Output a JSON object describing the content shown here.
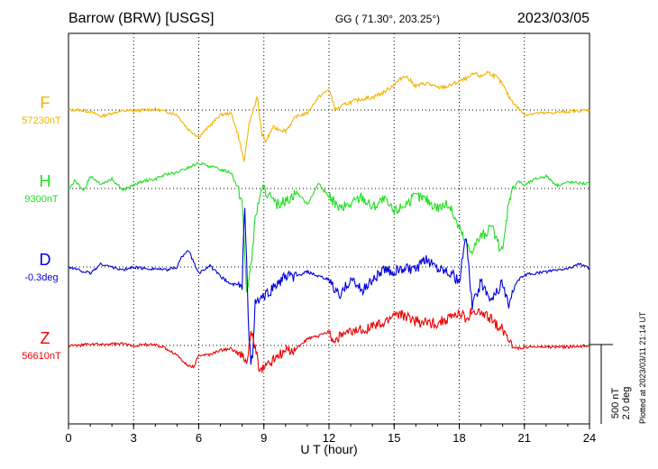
{
  "header": {
    "station": "Barrow (BRW)  [USGS]",
    "coords": "GG ( 71.30°, 203.25°)",
    "date": "2023/03/05"
  },
  "footer": {
    "plotted": "Plotted at 2023/03/11 21:14 UT"
  },
  "chart_data": {
    "type": "line",
    "xlabel": "U T (hour)",
    "xlim": [
      0,
      24
    ],
    "xticks": [
      "0",
      "3",
      "6",
      "9",
      "12",
      "15",
      "18",
      "21",
      "24"
    ],
    "grid": true,
    "scale": {
      "nT": "500 nT",
      "deg": "2.0 deg"
    },
    "series": [
      {
        "name": "F",
        "baseline": "57230nT",
        "color": "#f0b400",
        "points": [
          [
            0,
            0
          ],
          [
            0.5,
            0
          ],
          [
            1,
            -10
          ],
          [
            1.5,
            -40
          ],
          [
            2,
            -20
          ],
          [
            2.5,
            -5
          ],
          [
            3,
            -5
          ],
          [
            3.5,
            0
          ],
          [
            4,
            5
          ],
          [
            4.5,
            -10
          ],
          [
            5,
            -30
          ],
          [
            5.5,
            -120
          ],
          [
            6,
            -170
          ],
          [
            6.5,
            -100
          ],
          [
            7,
            -30
          ],
          [
            7.5,
            -20
          ],
          [
            7.8,
            -150
          ],
          [
            8.1,
            -330
          ],
          [
            8.3,
            -100
          ],
          [
            8.5,
            0
          ],
          [
            8.7,
            80
          ],
          [
            8.9,
            -150
          ],
          [
            9.1,
            -200
          ],
          [
            9.4,
            -110
          ],
          [
            10,
            -130
          ],
          [
            10.5,
            -40
          ],
          [
            11,
            -20
          ],
          [
            11.5,
            80
          ],
          [
            12,
            130
          ],
          [
            12.3,
            0
          ],
          [
            12.8,
            40
          ],
          [
            13.5,
            70
          ],
          [
            14,
            80
          ],
          [
            14.5,
            110
          ],
          [
            15,
            160
          ],
          [
            15.5,
            220
          ],
          [
            16,
            150
          ],
          [
            16.5,
            170
          ],
          [
            17,
            140
          ],
          [
            17.5,
            150
          ],
          [
            18,
            180
          ],
          [
            18.4,
            200
          ],
          [
            18.7,
            230
          ],
          [
            19,
            210
          ],
          [
            19.3,
            240
          ],
          [
            19.7,
            210
          ],
          [
            20,
            160
          ],
          [
            20.3,
            80
          ],
          [
            20.6,
            30
          ],
          [
            21,
            -30
          ],
          [
            21.5,
            -20
          ],
          [
            22,
            -20
          ],
          [
            23,
            -10
          ],
          [
            24,
            0
          ]
        ]
      },
      {
        "name": "H",
        "baseline": "9300nT",
        "color": "#22dd22",
        "points": [
          [
            0,
            0
          ],
          [
            0.3,
            50
          ],
          [
            0.7,
            -20
          ],
          [
            1,
            80
          ],
          [
            1.5,
            30
          ],
          [
            2,
            60
          ],
          [
            2.5,
            -10
          ],
          [
            3,
            20
          ],
          [
            3.5,
            50
          ],
          [
            4,
            60
          ],
          [
            4.5,
            90
          ],
          [
            5,
            100
          ],
          [
            5.5,
            130
          ],
          [
            6,
            160
          ],
          [
            6.5,
            140
          ],
          [
            7,
            120
          ],
          [
            7.5,
            100
          ],
          [
            7.8,
            0
          ],
          [
            8,
            -80
          ],
          [
            8.2,
            -650
          ],
          [
            8.4,
            -500
          ],
          [
            8.6,
            -200
          ],
          [
            8.8,
            -50
          ],
          [
            9,
            0
          ],
          [
            9.5,
            -100
          ],
          [
            10,
            -80
          ],
          [
            10.5,
            -20
          ],
          [
            11,
            -100
          ],
          [
            11.5,
            30
          ],
          [
            12,
            -50
          ],
          [
            12.5,
            -130
          ],
          [
            13,
            -100
          ],
          [
            13.5,
            -50
          ],
          [
            14,
            -120
          ],
          [
            14.5,
            -70
          ],
          [
            15,
            -150
          ],
          [
            15.5,
            -100
          ],
          [
            16,
            -50
          ],
          [
            16.5,
            -70
          ],
          [
            17,
            -120
          ],
          [
            17.5,
            -100
          ],
          [
            18,
            -250
          ],
          [
            18.5,
            -400
          ],
          [
            19,
            -300
          ],
          [
            19.5,
            -250
          ],
          [
            19.8,
            -350
          ],
          [
            20,
            -400
          ],
          [
            20.3,
            -50
          ],
          [
            20.7,
            50
          ],
          [
            21,
            20
          ],
          [
            21.5,
            60
          ],
          [
            22,
            80
          ],
          [
            22.5,
            20
          ],
          [
            23,
            40
          ],
          [
            24,
            30
          ]
        ]
      },
      {
        "name": "D",
        "baseline": "-0.3deg",
        "color": "#0000dd",
        "points": [
          [
            0,
            0
          ],
          [
            0.5,
            -20
          ],
          [
            1,
            -40
          ],
          [
            1.5,
            20
          ],
          [
            2,
            0
          ],
          [
            2.5,
            -20
          ],
          [
            3,
            0
          ],
          [
            3.5,
            -10
          ],
          [
            4,
            -10
          ],
          [
            4.5,
            -20
          ],
          [
            5,
            0
          ],
          [
            5.2,
            60
          ],
          [
            5.5,
            110
          ],
          [
            5.8,
            20
          ],
          [
            6,
            -40
          ],
          [
            6.5,
            10
          ],
          [
            7,
            -60
          ],
          [
            7.5,
            -110
          ],
          [
            7.8,
            -110
          ],
          [
            8,
            -140
          ],
          [
            8.1,
            400
          ],
          [
            8.2,
            100
          ],
          [
            8.3,
            -400
          ],
          [
            8.4,
            -600
          ],
          [
            8.5,
            -550
          ],
          [
            8.6,
            -220
          ],
          [
            9,
            -190
          ],
          [
            9.5,
            -120
          ],
          [
            10,
            -60
          ],
          [
            10.5,
            -60
          ],
          [
            11,
            -30
          ],
          [
            11.5,
            -60
          ],
          [
            12,
            -80
          ],
          [
            12.5,
            -190
          ],
          [
            13,
            -70
          ],
          [
            13.5,
            -150
          ],
          [
            14,
            -80
          ],
          [
            14.5,
            -20
          ],
          [
            15,
            -30
          ],
          [
            15.5,
            -10
          ],
          [
            16,
            -20
          ],
          [
            16.5,
            50
          ],
          [
            17,
            0
          ],
          [
            17.5,
            -20
          ],
          [
            18,
            -100
          ],
          [
            18.3,
            200
          ],
          [
            18.6,
            -250
          ],
          [
            19,
            -100
          ],
          [
            19.5,
            -200
          ],
          [
            20,
            -100
          ],
          [
            20.3,
            -250
          ],
          [
            20.6,
            -100
          ],
          [
            21,
            -50
          ],
          [
            21.5,
            -40
          ],
          [
            22,
            -30
          ],
          [
            22.5,
            -20
          ],
          [
            23,
            -10
          ],
          [
            23.5,
            20
          ],
          [
            24,
            -10
          ]
        ]
      },
      {
        "name": "Z",
        "baseline": "56610nT",
        "color": "#ee0000",
        "points": [
          [
            0,
            0
          ],
          [
            0.5,
            0
          ],
          [
            1,
            10
          ],
          [
            1.5,
            5
          ],
          [
            2,
            10
          ],
          [
            2.5,
            10
          ],
          [
            3,
            0
          ],
          [
            3.5,
            5
          ],
          [
            4,
            5
          ],
          [
            4.5,
            -20
          ],
          [
            5,
            -60
          ],
          [
            5.5,
            -130
          ],
          [
            5.8,
            -130
          ],
          [
            6,
            -60
          ],
          [
            6.5,
            -60
          ],
          [
            7,
            -30
          ],
          [
            7.5,
            -20
          ],
          [
            8,
            -70
          ],
          [
            8.2,
            -120
          ],
          [
            8.4,
            80
          ],
          [
            8.6,
            0
          ],
          [
            8.8,
            -160
          ],
          [
            9,
            -140
          ],
          [
            9.5,
            -80
          ],
          [
            10,
            -40
          ],
          [
            10.5,
            -20
          ],
          [
            11,
            40
          ],
          [
            11.5,
            60
          ],
          [
            12,
            90
          ],
          [
            12.2,
            20
          ],
          [
            12.5,
            60
          ],
          [
            13,
            80
          ],
          [
            13.5,
            100
          ],
          [
            14,
            120
          ],
          [
            14.5,
            130
          ],
          [
            15,
            200
          ],
          [
            15.5,
            190
          ],
          [
            16,
            150
          ],
          [
            16.5,
            140
          ],
          [
            17,
            140
          ],
          [
            17.5,
            170
          ],
          [
            18,
            200
          ],
          [
            18.3,
            170
          ],
          [
            18.6,
            220
          ],
          [
            19,
            200
          ],
          [
            19.5,
            160
          ],
          [
            20,
            100
          ],
          [
            20.3,
            40
          ],
          [
            20.6,
            -20
          ],
          [
            21,
            -10
          ],
          [
            22,
            -10
          ],
          [
            23,
            -10
          ],
          [
            24,
            0
          ]
        ]
      }
    ]
  }
}
